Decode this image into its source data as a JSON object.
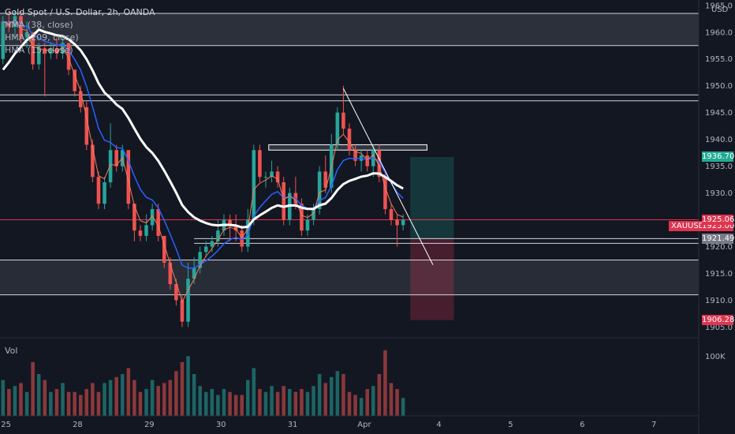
{
  "chart_data": {
    "type": "candlestick",
    "title": "Gold Spot / U.S. Dollar, 2h, OANDA",
    "currency": "USD",
    "indicators": [
      "HMA (38, close)",
      "HMA (209, close)",
      "HMA (15, close)"
    ],
    "volume_label": "Vol",
    "volume_tick": "100K",
    "symbol": "XAUUSD",
    "current_price": "1925.000",
    "price_labels": [
      {
        "value": 1936.708,
        "text": "1936.708",
        "color": "#22ab94"
      },
      {
        "value": 1925.065,
        "text": "1925.065",
        "color": "#e0344f"
      },
      {
        "value": 1921.498,
        "text": "1921.498",
        "color": "#787b86"
      },
      {
        "value": 1906.288,
        "text": "1906.288",
        "color": "#e0344f"
      }
    ],
    "y_ticks": [
      1965,
      1960,
      1955,
      1950,
      1945,
      1940,
      1935,
      1930,
      1925,
      1920,
      1915,
      1910,
      1905
    ],
    "ylim": [
      1903,
      1966
    ],
    "x_ticks": [
      {
        "label": "25",
        "x": 0.5
      },
      {
        "label": "28",
        "x": 12.5
      },
      {
        "label": "29",
        "x": 24.5
      },
      {
        "label": "30",
        "x": 36.5
      },
      {
        "label": "31",
        "x": 48.5
      },
      {
        "label": "Apr",
        "x": 60.5
      },
      {
        "label": "4",
        "x": 73
      },
      {
        "label": "5",
        "x": 85
      },
      {
        "label": "6",
        "x": 97
      },
      {
        "label": "7",
        "x": 109
      }
    ],
    "xlim": [
      -0.5,
      116.5
    ],
    "candles": [
      [
        1955,
        1963,
        1954,
        1962,
        60
      ],
      [
        1962,
        1964,
        1960,
        1961,
        45
      ],
      [
        1961,
        1964,
        1959,
        1963,
        50
      ],
      [
        1963,
        1964,
        1958,
        1959,
        55
      ],
      [
        1959,
        1962,
        1957,
        1960,
        40
      ],
      [
        1960,
        1960,
        1953,
        1954,
        90
      ],
      [
        1954,
        1958,
        1953,
        1957,
        70
      ],
      [
        1957,
        1958,
        1948,
        1956,
        60
      ],
      [
        1956,
        1958,
        1955,
        1957,
        40
      ],
      [
        1957,
        1959,
        1955,
        1956,
        45
      ],
      [
        1956,
        1959,
        1955,
        1958,
        55
      ],
      [
        1958,
        1958,
        1952,
        1953,
        40
      ],
      [
        1953,
        1953,
        1948,
        1949,
        40
      ],
      [
        1949,
        1950,
        1945,
        1946,
        35
      ],
      [
        1946,
        1947,
        1938,
        1939,
        45
      ],
      [
        1939,
        1940,
        1932,
        1933,
        55
      ],
      [
        1933,
        1934,
        1927,
        1928,
        40
      ],
      [
        1928,
        1933,
        1927,
        1932,
        55
      ],
      [
        1932,
        1943,
        1931,
        1938,
        60
      ],
      [
        1938,
        1939,
        1934,
        1935,
        65
      ],
      [
        1935,
        1939,
        1934,
        1938,
        70
      ],
      [
        1938,
        1938,
        1927,
        1928,
        80
      ],
      [
        1928,
        1928,
        1921,
        1923,
        60
      ],
      [
        1923,
        1924,
        1921,
        1922,
        40
      ],
      [
        1922,
        1926,
        1921,
        1924,
        45
      ],
      [
        1924,
        1928,
        1923,
        1927,
        60
      ],
      [
        1927,
        1928,
        1921,
        1922,
        50
      ],
      [
        1922,
        1922,
        1916,
        1917,
        55
      ],
      [
        1917,
        1918,
        1912,
        1913,
        60
      ],
      [
        1913,
        1914,
        1909,
        1910,
        75
      ],
      [
        1910,
        1911,
        1905,
        1906,
        90
      ],
      [
        1906,
        1917,
        1905,
        1914,
        100
      ],
      [
        1914,
        1918,
        1913,
        1916,
        70
      ],
      [
        1916,
        1920,
        1915,
        1919,
        50
      ],
      [
        1919,
        1921,
        1918,
        1920,
        40
      ],
      [
        1920,
        1922,
        1919,
        1921,
        45
      ],
      [
        1921,
        1925,
        1920,
        1923,
        35
      ],
      [
        1923,
        1926,
        1922,
        1925,
        45
      ],
      [
        1925,
        1926,
        1921,
        1924,
        40
      ],
      [
        1924,
        1926,
        1921,
        1923,
        35
      ],
      [
        1923,
        1924,
        1919,
        1920,
        35
      ],
      [
        1920,
        1927,
        1919,
        1925,
        60
      ],
      [
        1925,
        1939,
        1924,
        1938,
        80
      ],
      [
        1938,
        1939,
        1932,
        1933,
        45
      ],
      [
        1933,
        1934,
        1931,
        1933,
        40
      ],
      [
        1933,
        1936,
        1932,
        1934,
        50
      ],
      [
        1934,
        1935,
        1931,
        1932,
        40
      ],
      [
        1932,
        1933,
        1924,
        1925,
        50
      ],
      [
        1925,
        1931,
        1924,
        1930,
        45
      ],
      [
        1930,
        1933,
        1927,
        1928,
        40
      ],
      [
        1928,
        1929,
        1922,
        1923,
        45
      ],
      [
        1923,
        1926,
        1922,
        1925,
        40
      ],
      [
        1925,
        1928,
        1924,
        1927,
        50
      ],
      [
        1927,
        1935,
        1926,
        1934,
        70
      ],
      [
        1934,
        1937,
        1930,
        1931,
        55
      ],
      [
        1931,
        1941,
        1930,
        1939,
        65
      ],
      [
        1939,
        1946,
        1938,
        1945,
        75
      ],
      [
        1945,
        1950,
        1941,
        1942,
        70
      ],
      [
        1942,
        1943,
        1937,
        1938,
        40
      ],
      [
        1938,
        1939,
        1935,
        1936,
        35
      ],
      [
        1936,
        1938,
        1934,
        1937,
        30
      ],
      [
        1937,
        1938,
        1934,
        1935,
        45
      ],
      [
        1935,
        1939,
        1933,
        1938,
        50
      ],
      [
        1938,
        1939,
        1932,
        1933,
        70
      ],
      [
        1933,
        1934,
        1926,
        1927,
        110
      ],
      [
        1927,
        1928,
        1924,
        1925,
        55
      ],
      [
        1925,
        1926,
        1920,
        1924,
        45
      ],
      [
        1924,
        1926,
        1923,
        1925,
        30
      ]
    ]
  }
}
